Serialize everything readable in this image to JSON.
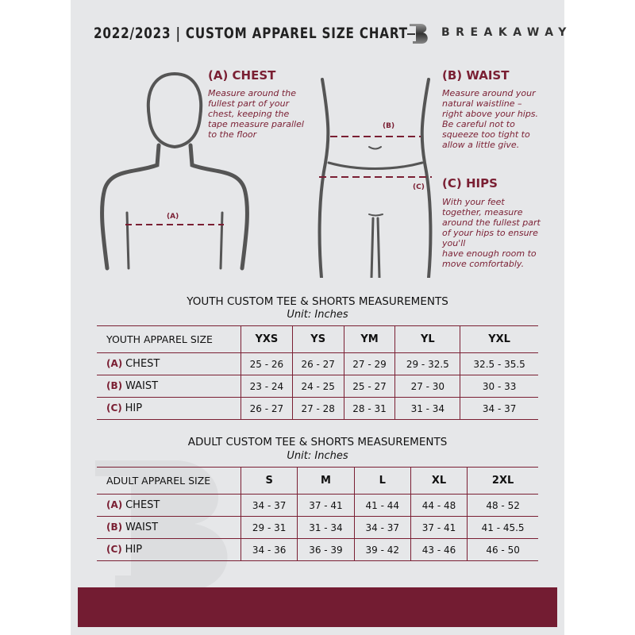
{
  "header": {
    "title": "2022/2023 | CUSTOM APPAREL SIZE CHART",
    "brand": "BREAKAWAY"
  },
  "colors": {
    "accent": "#7a1f33",
    "background": "#e6e7e9",
    "footer": "#731c32"
  },
  "guide": {
    "chest": {
      "heading": "(A) CHEST",
      "text": "Measure around the\nfullest part of your\nchest, keeping the\ntape measure parallel\nto the floor",
      "marker": "(A)"
    },
    "waist": {
      "heading": "(B) WAIST",
      "text": "Measure around your\nnatural waistline –\nright above your hips.\nBe careful not to\nsqueeze too tight to\nallow a little give.",
      "marker": "(B)"
    },
    "hips": {
      "heading": "(C) HIPS",
      "text": "With your feet\ntogether, measure\naround the fullest part\nof your hips to ensure\nyou'll\nhave enough room to\nmove comfortably.",
      "marker": "(C)"
    }
  },
  "youth": {
    "title": "YOUTH CUSTOM TEE & SHORTS MEASUREMENTS",
    "unit": "Unit: Inches",
    "header": "YOUTH APPAREL SIZE",
    "sizes": [
      "YXS",
      "YS",
      "YM",
      "YL",
      "YXL"
    ],
    "rows": [
      {
        "letter": "(A)",
        "label": "CHEST",
        "values": [
          "25 - 26",
          "26 - 27",
          "27 - 29",
          "29 - 32.5",
          "32.5 - 35.5"
        ]
      },
      {
        "letter": "(B)",
        "label": "WAIST",
        "values": [
          "23 - 24",
          "24 - 25",
          "25 - 27",
          "27 - 30",
          "30 - 33"
        ]
      },
      {
        "letter": "(C)",
        "label": "HIP",
        "values": [
          "26 - 27",
          "27 - 28",
          "28 - 31",
          "31 - 34",
          "34 - 37"
        ]
      }
    ]
  },
  "adult": {
    "title": "ADULT CUSTOM TEE & SHORTS MEASUREMENTS",
    "unit": "Unit: Inches",
    "header": "ADULT APPAREL SIZE",
    "sizes": [
      "S",
      "M",
      "L",
      "XL",
      "2XL"
    ],
    "rows": [
      {
        "letter": "(A)",
        "label": "CHEST",
        "values": [
          "34 - 37",
          "37 - 41",
          "41 - 44",
          "44 - 48",
          "48 - 52"
        ]
      },
      {
        "letter": "(B)",
        "label": "WAIST",
        "values": [
          "29 - 31",
          "31 - 34",
          "34 - 37",
          "37 - 41",
          "41 - 45.5"
        ]
      },
      {
        "letter": "(C)",
        "label": "HIP",
        "values": [
          "34 - 36",
          "36 - 39",
          "39 - 42",
          "43 - 46",
          "46 - 50"
        ]
      }
    ]
  }
}
